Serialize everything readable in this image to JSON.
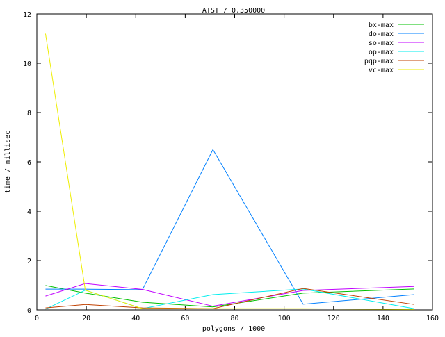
{
  "chart_data": {
    "type": "line",
    "title": "ATST / 0.350000",
    "xlabel": "polygons / 1000",
    "ylabel": "time / millisec",
    "xlim": [
      0,
      160
    ],
    "ylim": [
      0,
      12
    ],
    "xticks": [
      0,
      20,
      40,
      60,
      80,
      100,
      120,
      140,
      160
    ],
    "yticks": [
      0,
      2,
      4,
      6,
      8,
      10,
      12
    ],
    "grid": false,
    "legend_position": "top-right",
    "x": [
      3.5,
      19.6,
      42.7,
      71.2,
      107.7,
      152.6
    ],
    "series": [
      {
        "name": "bx-max",
        "color": "#00c000",
        "values": [
          0.99,
          0.68,
          0.31,
          0.12,
          0.68,
          0.85
        ]
      },
      {
        "name": "do-max",
        "color": "#0080ff",
        "values": [
          0.84,
          0.84,
          0.82,
          6.5,
          0.23,
          0.62
        ]
      },
      {
        "name": "so-max",
        "color": "#c000ff",
        "values": [
          0.56,
          1.07,
          0.83,
          0.15,
          0.79,
          0.95
        ]
      },
      {
        "name": "op-max",
        "color": "#00eeee",
        "values": [
          0.03,
          0.8,
          0.05,
          0.62,
          0.85,
          0.05
        ]
      },
      {
        "name": "pqp-max",
        "color": "#c04000",
        "values": [
          0.08,
          0.22,
          0.08,
          0.05,
          0.87,
          0.22
        ]
      },
      {
        "name": "vc-max",
        "color": "#eeee00",
        "values": [
          11.2,
          0.8,
          0.05,
          0.05,
          0.05,
          0.02
        ]
      }
    ]
  }
}
